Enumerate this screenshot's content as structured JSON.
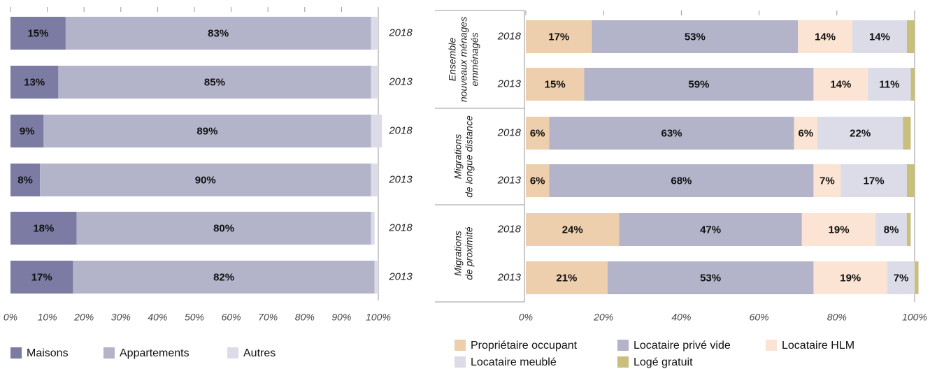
{
  "chart_data": [
    {
      "type": "hbarstack",
      "categories": [
        "2018",
        "2013",
        "2018",
        "2013",
        "2018",
        "2013"
      ],
      "series": [
        {
          "name": "Maisons",
          "color": "#7b7ba3",
          "values": [
            15,
            13,
            9,
            8,
            18,
            17
          ],
          "value_labels": [
            "15%",
            "13%",
            "9%",
            "8%",
            "18%",
            "17%"
          ]
        },
        {
          "name": "Appartements",
          "color": "#b3b3ca",
          "values": [
            83,
            85,
            89,
            90,
            80,
            82
          ],
          "value_labels": [
            "83%",
            "85%",
            "89%",
            "90%",
            "80%",
            "82%"
          ]
        },
        {
          "name": "Autres",
          "color": "#dcdce8",
          "values": [
            2,
            2,
            3,
            2,
            1,
            1
          ]
        }
      ],
      "xlim": [
        0,
        100
      ],
      "xticks": [
        {
          "value": 0,
          "label": "0%"
        },
        {
          "value": 10,
          "label": "10%"
        },
        {
          "value": 20,
          "label": "20%"
        },
        {
          "value": 30,
          "label": "30%"
        },
        {
          "value": 40,
          "label": "40%"
        },
        {
          "value": 50,
          "label": "50%"
        },
        {
          "value": 60,
          "label": "60%"
        },
        {
          "value": 70,
          "label": "70%"
        },
        {
          "value": 80,
          "label": "80%"
        },
        {
          "value": 90,
          "label": "90%"
        },
        {
          "value": 100,
          "label": "100%"
        }
      ]
    },
    {
      "type": "hbarstack",
      "categories": [
        "2018",
        "2013",
        "2018",
        "2013",
        "2018",
        "2013"
      ],
      "groups": [
        {
          "lines": [
            "Ensemble",
            "nouveaux ménages",
            "emménagés"
          ]
        },
        {
          "lines": [
            "Migrations",
            "de longue distance"
          ]
        },
        {
          "lines": [
            "Migrations",
            "de proximité"
          ]
        }
      ],
      "series": [
        {
          "name": "Propriétaire occupant",
          "color": "#edcfad",
          "values": [
            17,
            15,
            6,
            6,
            24,
            21
          ],
          "value_labels": [
            "17%",
            "15%",
            "6%",
            "6%",
            "24%",
            "21%"
          ]
        },
        {
          "name": "Locataire privé vide",
          "color": "#b3b3ca",
          "values": [
            53,
            59,
            63,
            68,
            47,
            53
          ],
          "value_labels": [
            "53%",
            "59%",
            "63%",
            "68%",
            "47%",
            "53%"
          ]
        },
        {
          "name": "Locataire HLM",
          "color": "#fbe4d3",
          "values": [
            14,
            14,
            6,
            7,
            19,
            19
          ],
          "value_labels": [
            "14%",
            "14%",
            "6%",
            "7%",
            "19%",
            "19%"
          ]
        },
        {
          "name": "Locataire meublé",
          "color": "#dcdce8",
          "values": [
            14,
            11,
            22,
            17,
            8,
            7
          ],
          "value_labels": [
            "14%",
            "11%",
            "22%",
            "17%",
            "8%",
            "7%"
          ]
        },
        {
          "name": "Logé gratuit",
          "color": "#c9bf7c",
          "values": [
            2,
            1,
            2,
            2,
            1,
            1
          ]
        }
      ],
      "xlim": [
        0,
        100
      ],
      "xticks": [
        {
          "value": 0,
          "label": "0%"
        },
        {
          "value": 20,
          "label": "20%"
        },
        {
          "value": 40,
          "label": "40%"
        },
        {
          "value": 60,
          "label": "60%"
        },
        {
          "value": 80,
          "label": "80%"
        },
        {
          "value": 100,
          "label": "100%"
        }
      ]
    }
  ]
}
